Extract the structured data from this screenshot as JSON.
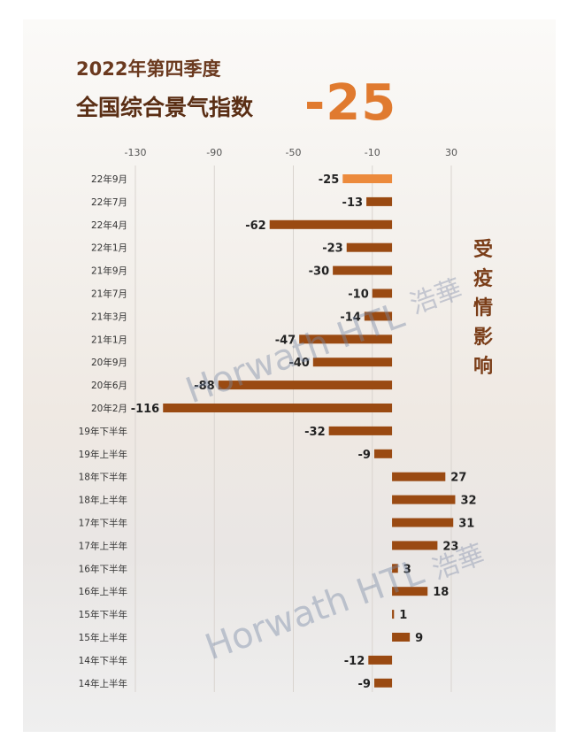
{
  "header": {
    "title_line1": "2022年第四季度",
    "title_line2": "全国综合景气指数",
    "big_value": "-25"
  },
  "side_note": "受疫情影响",
  "watermark": {
    "text": "Horwath HTL",
    "text_cn": "浩華"
  },
  "colors": {
    "bar_default": "#9a4a12",
    "bar_highlight": "#ec8a3c",
    "title": "#5a2e14",
    "accent": "#e07a2f"
  },
  "chart_data": {
    "type": "bar",
    "orientation": "horizontal",
    "title": "",
    "xlabel": "",
    "ylabel": "",
    "xlim": [
      -130,
      30
    ],
    "ticks": [
      -130,
      -90,
      -50,
      -10,
      30
    ],
    "grid": true,
    "categories": [
      "22年9月",
      "22年7月",
      "22年4月",
      "22年1月",
      "21年9月",
      "21年7月",
      "21年3月",
      "21年1月",
      "20年9月",
      "20年6月",
      "20年2月",
      "19年下半年",
      "19年上半年",
      "18年下半年",
      "18年上半年",
      "17年下半年",
      "17年上半年",
      "16年下半年",
      "16年上半年",
      "15年下半年",
      "15年上半年",
      "14年下半年",
      "14年上半年"
    ],
    "values": [
      -25,
      -13,
      -62,
      -23,
      -30,
      -10,
      -14,
      -47,
      -40,
      -88,
      -116,
      -32,
      -9,
      27,
      32,
      31,
      23,
      3,
      18,
      1,
      9,
      -12,
      -9
    ],
    "highlight_index": 0
  }
}
